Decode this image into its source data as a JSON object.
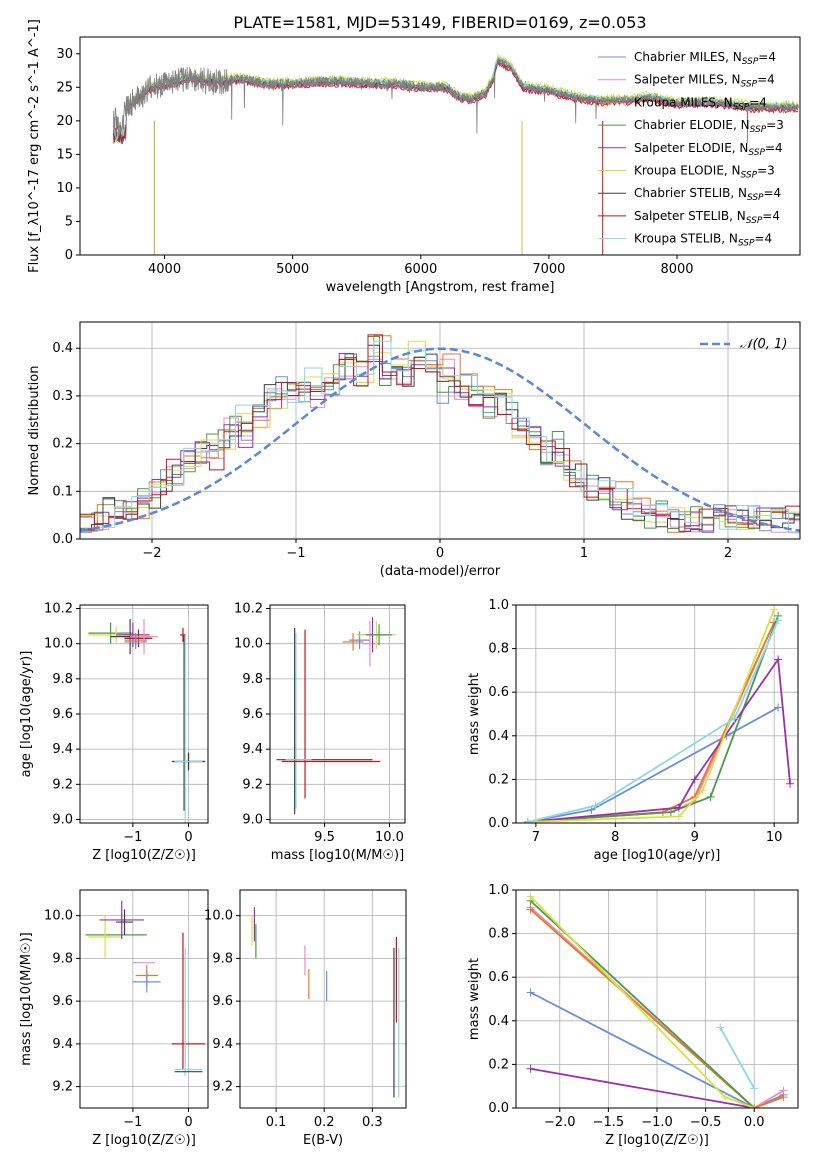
{
  "figure": {
    "title": "PLATE=1581, MJD=53149, FIBERID=0169, z=0.053"
  },
  "chart_data": [
    {
      "id": "spectrum",
      "type": "line",
      "title": "PLATE=1581, MJD=53149, FIBERID=0169, z=0.053",
      "xlabel": "wavelength [Angstrom, rest frame]",
      "ylabel": "Flux [f_λ10^-17 erg cm^-2 s^-1 A^-1]",
      "xlim": [
        3340,
        8960
      ],
      "ylim": [
        0,
        32.5
      ],
      "xticks": [
        4000,
        5000,
        6000,
        7000,
        8000
      ],
      "yticks": [
        0,
        5,
        10,
        15,
        20,
        25,
        30
      ],
      "grid": false,
      "legend_position": "top-right",
      "data_color": "#808080",
      "data_anchor": {
        "x": [
          3600,
          3650,
          3700,
          3800,
          3900,
          4000,
          4100,
          4200,
          4300,
          4400,
          4600,
          4800,
          5000,
          5200,
          5400,
          5600,
          5800,
          6000,
          6200,
          6300,
          6400,
          6500,
          6560,
          6600,
          6700,
          6800,
          7000,
          7200,
          7400,
          7600,
          7800,
          8000,
          8200,
          8400,
          8600,
          8800,
          8950
        ],
        "y": [
          20.5,
          19,
          22,
          23.5,
          25,
          25.5,
          25.8,
          26.5,
          26,
          25.8,
          26.2,
          25.5,
          25.5,
          25.8,
          25.8,
          25.5,
          25.5,
          25,
          25,
          23.5,
          23.2,
          24,
          26,
          29,
          28,
          25,
          24.5,
          23.5,
          23,
          23,
          23.5,
          22.5,
          22.8,
          22.5,
          22,
          22,
          22
        ]
      },
      "series": [
        {
          "name": "Chabrier MILES, N_SSP=4",
          "color": "#6a8fd8"
        },
        {
          "name": "Salpeter MILES, N_SSP=4",
          "color": "#f08cc0"
        },
        {
          "name": "Kroupa MILES, N_SSP=4",
          "color": "#e8782a"
        },
        {
          "name": "Chabrier ELODIE, N_SSP=3",
          "color": "#4a9a4a"
        },
        {
          "name": "Salpeter ELODIE, N_SSP=4",
          "color": "#9a30b0"
        },
        {
          "name": "Kroupa ELODIE, N_SSP=3",
          "color": "#d8e040"
        },
        {
          "name": "Chabrier STELIB, N_SSP=4",
          "color": "#404040"
        },
        {
          "name": "Salpeter STELIB, N_SSP=4",
          "color": "#c01818"
        },
        {
          "name": "Kroupa STELIB, N_SSP=4",
          "color": "#8ad8e8"
        }
      ]
    },
    {
      "id": "residuals",
      "type": "line",
      "xlabel": "(data-model)/error",
      "ylabel": "Normed distribution",
      "xlim": [
        -2.5,
        2.5
      ],
      "ylim": [
        0,
        0.455
      ],
      "xticks": [
        -2,
        -1,
        0,
        1,
        2
      ],
      "yticks": [
        0.0,
        0.1,
        0.2,
        0.3,
        0.4
      ],
      "grid": true,
      "legend_position": "top-right",
      "normal_curve": {
        "name": "𝒩(0, 1)",
        "color": "#5b87d6",
        "mean": 0,
        "sigma": 1
      },
      "bin_width": 0.1,
      "bin_start": -2.5,
      "base_values": [
        0.03,
        0.04,
        0.05,
        0.06,
        0.06,
        0.07,
        0.07,
        0.07,
        0.08,
        0.09,
        0.11,
        0.12,
        0.14,
        0.16,
        0.17,
        0.19,
        0.18,
        0.2,
        0.17,
        0.2,
        0.24,
        0.26,
        0.22,
        0.27,
        0.26,
        0.3,
        0.29,
        0.33,
        0.3,
        0.29,
        0.31,
        0.33,
        0.3,
        0.33,
        0.32,
        0.35,
        0.36,
        0.34,
        0.35,
        0.37,
        0.4,
        0.34,
        0.33,
        0.38,
        0.35,
        0.39,
        0.36,
        0.34,
        0.37,
        0.31,
        0.36,
        0.33,
        0.32,
        0.32,
        0.3,
        0.33,
        0.28,
        0.3,
        0.26,
        0.27,
        0.24,
        0.26,
        0.21,
        0.22,
        0.18,
        0.2,
        0.16,
        0.14,
        0.13,
        0.12,
        0.11,
        0.09,
        0.1,
        0.08,
        0.09,
        0.06,
        0.06,
        0.05,
        0.05,
        0.05,
        0.05,
        0.04,
        0.05,
        0.04,
        0.04,
        0.04,
        0.04,
        0.05,
        0.05,
        0.05,
        0.05,
        0.05,
        0.05,
        0.04,
        0.04,
        0.04,
        0.04,
        0.05,
        0.04,
        0.05
      ]
    },
    {
      "id": "age-metallicity",
      "type": "scatter",
      "xlabel": "Z [log10(Z/Z☉)]",
      "ylabel": "age  [log10(age/yr)]",
      "xlim": [
        -1.95,
        0.35
      ],
      "ylim": [
        8.98,
        10.22
      ],
      "xticks": [
        -1,
        0
      ],
      "yticks": [
        9.0,
        9.2,
        9.4,
        9.6,
        9.8,
        10.0,
        10.2
      ],
      "grid": true,
      "points": [
        {
          "x": -1.4,
          "y": 10.06,
          "xerr": 0.4,
          "yerr": 0.06,
          "color": "#4a9a4a"
        },
        {
          "x": -1.3,
          "y": 10.05,
          "xerr": 0.5,
          "yerr": 0.05,
          "color": "#d8e040"
        },
        {
          "x": -1.05,
          "y": 10.04,
          "xerr": 0.35,
          "yerr": 0.1,
          "color": "#404040"
        },
        {
          "x": -1.0,
          "y": 10.05,
          "xerr": 0.3,
          "yerr": 0.07,
          "color": "#9a30b0"
        },
        {
          "x": -0.9,
          "y": 10.03,
          "xerr": 0.25,
          "yerr": 0.05,
          "color": "#c01818"
        },
        {
          "x": -0.8,
          "y": 10.04,
          "xerr": 0.25,
          "yerr": 0.1,
          "color": "#f08cc0"
        },
        {
          "x": -0.95,
          "y": 10.02,
          "xerr": 0.2,
          "yerr": 0.04,
          "color": "#e8782a"
        },
        {
          "x": -0.95,
          "y": 10.01,
          "xerr": 0.2,
          "yerr": 0.04,
          "color": "#6a8fd8"
        },
        {
          "x": -0.1,
          "y": 10.05,
          "xerr": 0.05,
          "yerr": 0.04,
          "color": "#c01818"
        },
        {
          "x": 0.0,
          "y": 9.33,
          "xerr": 0.3,
          "yerr": 0.05,
          "color": "#c01818"
        },
        {
          "x": 0.0,
          "y": 9.33,
          "xerr": 0.28,
          "yerr": 0.05,
          "color": "#404040"
        },
        {
          "x": -0.08,
          "y": 9.55,
          "xerr": 0.0,
          "yerr": 0.5,
          "color": "#404040"
        },
        {
          "x": -0.06,
          "y": 9.5,
          "xerr": 0.0,
          "yerr": 0.55,
          "color": "#8ad8e8"
        },
        {
          "x": 0.0,
          "y": 9.33,
          "xerr": 0.25,
          "yerr": 0.0,
          "color": "#8ad8e8"
        }
      ]
    },
    {
      "id": "age-mass",
      "type": "scatter",
      "xlabel": "mass [log10(M/M☉)]",
      "ylabel": "",
      "xlim": [
        9.08,
        10.12
      ],
      "ylim": [
        8.98,
        10.22
      ],
      "xticks": [
        9.5,
        10.0
      ],
      "yticks": [
        9.0,
        9.2,
        9.4,
        9.6,
        9.8,
        10.0,
        10.2
      ],
      "grid": true,
      "points": [
        {
          "x": 9.27,
          "y": 9.56,
          "xerr": 0.0,
          "yerr": 0.53,
          "color": "#404040"
        },
        {
          "x": 9.28,
          "y": 9.56,
          "xerr": 0.0,
          "yerr": 0.5,
          "color": "#8ad8e8"
        },
        {
          "x": 9.35,
          "y": 9.6,
          "xerr": 0.0,
          "yerr": 0.48,
          "color": "#c01818"
        },
        {
          "x": 9.5,
          "y": 9.34,
          "xerr": 0.37,
          "yerr": 0.0,
          "color": "#404040"
        },
        {
          "x": 9.55,
          "y": 9.33,
          "xerr": 0.38,
          "yerr": 0.0,
          "color": "#c01818"
        },
        {
          "x": 9.3,
          "y": 9.34,
          "xerr": 0.1,
          "yerr": 0.0,
          "color": "#8ad8e8"
        },
        {
          "x": 9.72,
          "y": 10.01,
          "xerr": 0.08,
          "yerr": 0.05,
          "color": "#e8782a"
        },
        {
          "x": 9.77,
          "y": 10.02,
          "xerr": 0.08,
          "yerr": 0.05,
          "color": "#6a8fd8"
        },
        {
          "x": 9.85,
          "y": 10.0,
          "xerr": 0.06,
          "yerr": 0.13,
          "color": "#f08cc0"
        },
        {
          "x": 9.87,
          "y": 10.05,
          "xerr": 0.12,
          "yerr": 0.1,
          "color": "#9a30b0"
        },
        {
          "x": 9.9,
          "y": 10.05,
          "xerr": 0.15,
          "yerr": 0.08,
          "color": "#d8e040"
        },
        {
          "x": 9.92,
          "y": 10.05,
          "xerr": 0.1,
          "yerr": 0.06,
          "color": "#4a9a4a"
        }
      ]
    },
    {
      "id": "mass-weight-age",
      "type": "line",
      "xlabel": "age  [log10(age/yr)]",
      "ylabel": "mass weight",
      "xlim": [
        6.75,
        10.3
      ],
      "ylim": [
        0,
        1.0
      ],
      "xticks": [
        7,
        8,
        9,
        10
      ],
      "yticks": [
        0.0,
        0.2,
        0.4,
        0.6,
        0.8,
        1.0
      ],
      "grid": true,
      "series": [
        {
          "color": "#6a8fd8",
          "x": [
            6.9,
            7.7,
            9.4,
            10.05
          ],
          "y": [
            0.005,
            0.06,
            0.4,
            0.53
          ]
        },
        {
          "color": "#f08cc0",
          "x": [
            6.9,
            8.7,
            9.0,
            10.0
          ],
          "y": [
            0.005,
            0.05,
            0.1,
            0.92
          ]
        },
        {
          "color": "#e8782a",
          "x": [
            6.9,
            8.6,
            9.0,
            10.0
          ],
          "y": [
            0.005,
            0.05,
            0.12,
            0.92
          ]
        },
        {
          "color": "#4a9a4a",
          "x": [
            6.9,
            8.7,
            9.2,
            10.05
          ],
          "y": [
            0.005,
            0.05,
            0.12,
            0.95
          ]
        },
        {
          "color": "#9a30b0",
          "x": [
            6.9,
            8.8,
            9.0,
            10.05,
            10.2
          ],
          "y": [
            0.005,
            0.07,
            0.2,
            0.75,
            0.18
          ]
        },
        {
          "color": "#d8e040",
          "x": [
            6.9,
            8.8,
            9.1,
            10.0
          ],
          "y": [
            0.005,
            0.03,
            0.15,
            0.98
          ]
        },
        {
          "color": "#8ad8e8",
          "x": [
            6.9,
            7.75,
            9.5,
            10.05
          ],
          "y": [
            0.005,
            0.08,
            0.48,
            0.93
          ]
        }
      ]
    },
    {
      "id": "mass-metallicity",
      "type": "scatter",
      "xlabel": "Z [log10(Z/Z☉)]",
      "ylabel": "mass [log10(M/M☉)]",
      "xlim": [
        -1.95,
        0.35
      ],
      "ylim": [
        9.1,
        10.12
      ],
      "xticks": [
        -1,
        0
      ],
      "yticks": [
        9.2,
        9.4,
        9.6,
        9.8,
        10.0
      ],
      "grid": true,
      "points": [
        {
          "x": -1.3,
          "y": 9.91,
          "xerr": 0.55,
          "yerr": 0.0,
          "color": "#4a9a4a"
        },
        {
          "x": -1.5,
          "y": 9.9,
          "xerr": 0.3,
          "yerr": 0.1,
          "color": "#d8e040"
        },
        {
          "x": -1.2,
          "y": 9.98,
          "xerr": 0.4,
          "yerr": 0.09,
          "color": "#9a30b0"
        },
        {
          "x": -1.15,
          "y": 9.97,
          "xerr": 0.15,
          "yerr": 0.06,
          "color": "#404040"
        },
        {
          "x": -0.8,
          "y": 9.78,
          "xerr": 0.2,
          "yerr": 0.0,
          "color": "#f08cc0"
        },
        {
          "x": -0.75,
          "y": 9.72,
          "xerr": 0.2,
          "yerr": 0.05,
          "color": "#e8782a"
        },
        {
          "x": -0.75,
          "y": 9.69,
          "xerr": 0.25,
          "yerr": 0.05,
          "color": "#6a8fd8"
        },
        {
          "x": -0.1,
          "y": 9.6,
          "xerr": 0.0,
          "yerr": 0.32,
          "color": "#c01818"
        },
        {
          "x": 0.0,
          "y": 9.4,
          "xerr": 0.3,
          "yerr": 0.0,
          "color": "#c01818"
        },
        {
          "x": -0.06,
          "y": 9.55,
          "xerr": 0.0,
          "yerr": 0.3,
          "color": "#8ad8e8"
        },
        {
          "x": 0.0,
          "y": 9.28,
          "xerr": 0.25,
          "yerr": 0.0,
          "color": "#8ad8e8"
        },
        {
          "x": 0.0,
          "y": 9.27,
          "xerr": 0.25,
          "yerr": 0.0,
          "color": "#404040"
        }
      ]
    },
    {
      "id": "mass-ebv",
      "type": "scatter",
      "xlabel": "E(B-V)",
      "ylabel": "",
      "xlim": [
        0.025,
        0.37
      ],
      "ylim": [
        9.1,
        10.12
      ],
      "xticks": [
        0.1,
        0.2,
        0.3
      ],
      "yticks": [
        9.2,
        9.4,
        9.6,
        9.8,
        10.0
      ],
      "grid": true,
      "points": [
        {
          "x": 0.05,
          "y": 9.93,
          "xerr": 0.0,
          "yerr": 0.07,
          "color": "#d8e040"
        },
        {
          "x": 0.055,
          "y": 9.96,
          "xerr": 0.0,
          "yerr": 0.08,
          "color": "#9a30b0"
        },
        {
          "x": 0.058,
          "y": 9.88,
          "xerr": 0.0,
          "yerr": 0.08,
          "color": "#4a9a4a"
        },
        {
          "x": 0.16,
          "y": 9.79,
          "xerr": 0.0,
          "yerr": 0.07,
          "color": "#f08cc0"
        },
        {
          "x": 0.168,
          "y": 9.68,
          "xerr": 0.0,
          "yerr": 0.07,
          "color": "#e8782a"
        },
        {
          "x": 0.205,
          "y": 9.67,
          "xerr": 0.0,
          "yerr": 0.07,
          "color": "#6a8fd8"
        },
        {
          "x": 0.345,
          "y": 9.5,
          "xerr": 0.0,
          "yerr": 0.35,
          "color": "#404040"
        },
        {
          "x": 0.35,
          "y": 9.7,
          "xerr": 0.0,
          "yerr": 0.2,
          "color": "#c01818"
        },
        {
          "x": 0.355,
          "y": 9.5,
          "xerr": 0.0,
          "yerr": 0.35,
          "color": "#8ad8e8"
        }
      ]
    },
    {
      "id": "mass-weight-metallicity",
      "type": "line",
      "xlabel": "Z [log10(Z/Z☉)]",
      "ylabel": "mass weight",
      "xlim": [
        -2.45,
        0.45
      ],
      "ylim": [
        0,
        1.0
      ],
      "xticks": [
        -2.0,
        -1.5,
        -1.0,
        -0.5,
        0.0
      ],
      "yticks": [
        0.0,
        0.2,
        0.4,
        0.6,
        0.8,
        1.0
      ],
      "grid": true,
      "series": [
        {
          "color": "#6a8fd8",
          "x": [
            -2.3,
            0.0,
            0.3
          ],
          "y": [
            0.53,
            0.0,
            0.06
          ]
        },
        {
          "color": "#f08cc0",
          "x": [
            -2.3,
            0.0,
            0.3
          ],
          "y": [
            0.92,
            0.0,
            0.08
          ]
        },
        {
          "color": "#e8782a",
          "x": [
            -2.3,
            0.0,
            0.3
          ],
          "y": [
            0.91,
            0.0,
            0.05
          ]
        },
        {
          "color": "#4a9a4a",
          "x": [
            -2.3,
            0.0
          ],
          "y": [
            0.95,
            0.0
          ]
        },
        {
          "color": "#9a30b0",
          "x": [
            -2.3,
            0.0
          ],
          "y": [
            0.18,
            0.0
          ]
        },
        {
          "color": "#d8e040",
          "x": [
            -2.3,
            -0.3,
            0.0
          ],
          "y": [
            0.97,
            0.05,
            0.0
          ]
        },
        {
          "color": "#8ad8e8",
          "x": [
            -0.35,
            0.0
          ],
          "y": [
            0.37,
            0.09
          ]
        }
      ]
    }
  ]
}
